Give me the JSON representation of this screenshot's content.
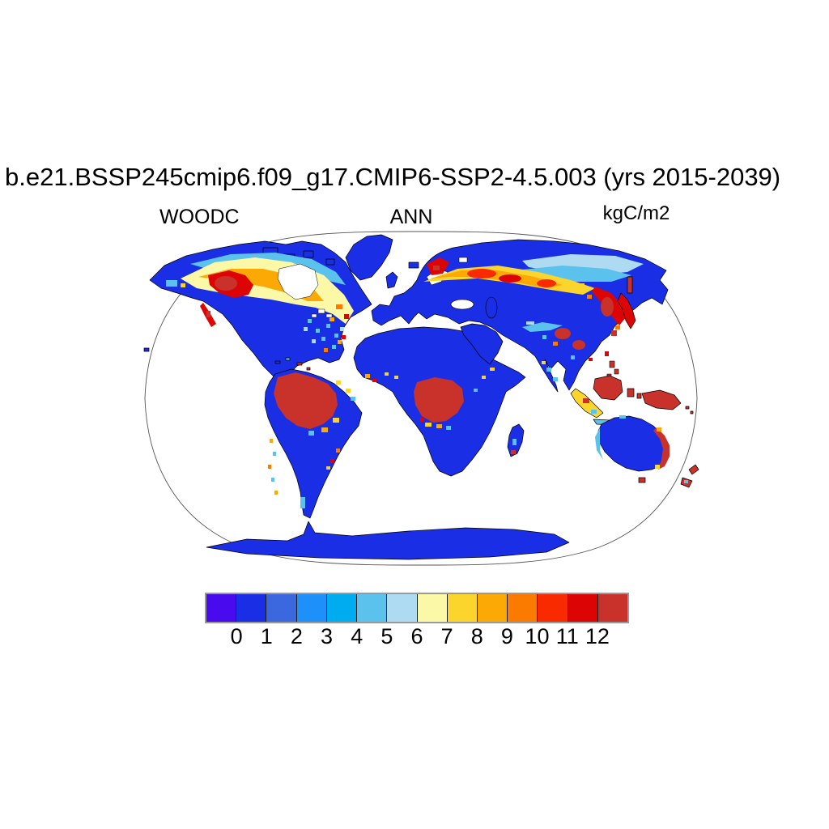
{
  "page": {
    "background": "#ffffff"
  },
  "header": {
    "title": "b.e21.BSSP245cmip6.f09_g17.CMIP6-SSP2-4.5.003 (yrs 2015-2039)"
  },
  "plot": {
    "variable_label": "WOODC",
    "season_label": "ANN",
    "units_label": "kgC/m2"
  },
  "chart_data": {
    "type": "heatmap",
    "subtype": "global-world-map-robinson-projection",
    "title": "b.e21.BSSP245cmip6.f09_g17.CMIP6-SSP2-4.5.003 (yrs 2015-2039)",
    "variable": "WOODC",
    "aggregation": "ANN",
    "units": "kgC/m2",
    "period": "yrs 2015-2039",
    "legend_position": "bottom-horizontal-colorbar",
    "colorbar": {
      "orientation": "horizontal",
      "tick_labels": [
        "0",
        "1",
        "2",
        "3",
        "4",
        "5",
        "6",
        "7",
        "8",
        "9",
        "10",
        "11",
        "12"
      ],
      "colors": [
        "#4A0AEE",
        "#1A2EE6",
        "#3C68DF",
        "#1E90FA",
        "#00ACF0",
        "#5BC2EE",
        "#AEDBF2",
        "#FBF8A8",
        "#FBD42C",
        "#FCA905",
        "#FB7A00",
        "#F92A00",
        "#DC0404",
        "#C8322B"
      ]
    },
    "map_colors": {
      "ocean": "#FFFFFF",
      "low_value_land": "#1A2EE6",
      "tropical_forest_high": "#C8322B",
      "boreal_band_mix": [
        "#5BC2EE",
        "#FBF8A8",
        "#FBD42C",
        "#FCA905",
        "#FB7A00",
        "#DC0404"
      ],
      "outline": "#000000"
    },
    "regions_approx": [
      {
        "region": "Amazon basin",
        "value_kgC_m2": ">12"
      },
      {
        "region": "Congo basin",
        "value_kgC_m2": ">12"
      },
      {
        "region": "Borneo, Sumatra, New Guinea, maritime Southeast Asia",
        "value_kgC_m2": ">12"
      },
      {
        "region": "Japan, Korea, southeast China patches",
        "value_kgC_m2": "8-12"
      },
      {
        "region": "Boreal western Canada",
        "value_kgC_m2": "8-12"
      },
      {
        "region": "Scandinavia and Russian taiga band",
        "value_kgC_m2": "6-12"
      },
      {
        "region": "Russian far east (Amur/Sakhalin)",
        "value_kgC_m2": "8-12"
      },
      {
        "region": "Eastern United States",
        "value_kgC_m2": "2-6"
      },
      {
        "region": "Australian east coast fringe, Tasmania, New Zealand",
        "value_kgC_m2": "8-12"
      },
      {
        "region": "Deserts, tundra, grasslands, ice sheets (most remaining land)",
        "value_kgC_m2": "0-1"
      }
    ]
  }
}
